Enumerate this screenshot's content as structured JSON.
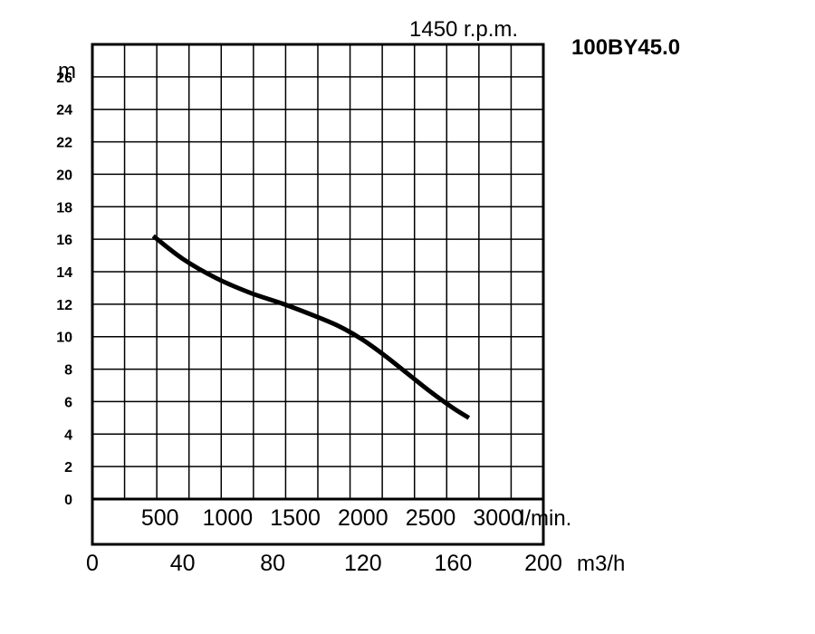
{
  "chart_data": {
    "type": "line",
    "title": "100BY45.0",
    "subtitle": "1450 r.p.m.",
    "ylabel": "m",
    "xlabel": "m3/h",
    "xlabel_secondary": "l/min.",
    "ylim": [
      0,
      28
    ],
    "xlim": [
      0,
      200
    ],
    "y_ticks": [
      "0",
      "2",
      "4",
      "6",
      "8",
      "10",
      "12",
      "14",
      "16",
      "18",
      "20",
      "22",
      "24",
      "26"
    ],
    "x_ticks": [
      "0",
      "40",
      "80",
      "120",
      "160",
      "200"
    ],
    "x_secondary_ticks": [
      "500",
      "1000",
      "1500",
      "2000",
      "2500",
      "3000"
    ],
    "grid": true,
    "series": [
      {
        "x": [
          27,
          40,
          55,
          70,
          85,
          100,
          110,
          120,
          130,
          140,
          150,
          160,
          167
        ],
        "values": [
          16.2,
          14.8,
          13.6,
          12.7,
          12.0,
          11.2,
          10.6,
          9.8,
          8.8,
          7.7,
          6.6,
          5.6,
          5.0
        ]
      }
    ]
  }
}
